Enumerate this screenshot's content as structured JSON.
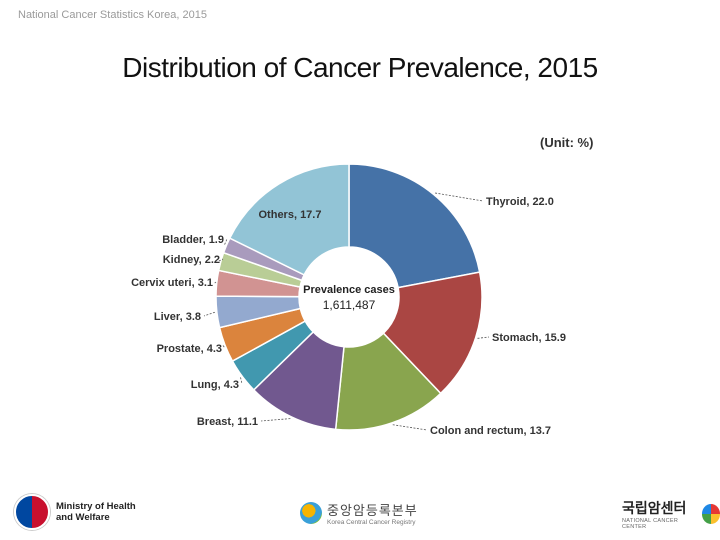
{
  "header": {
    "note": "National Cancer Statistics Korea, 2015"
  },
  "title": "Distribution of Cancer Prevalence, 2015",
  "unit_label": "(Unit: %)",
  "chart_data": {
    "type": "pie",
    "donut": true,
    "title": "Distribution of Cancer Prevalence, 2015",
    "unit": "%",
    "center_label": "Prevalence cases",
    "center_value": "1,611,487",
    "categories": [
      "Thyroid",
      "Stomach",
      "Colon and rectum",
      "Breast",
      "Lung",
      "Prostate",
      "Liver",
      "Cervix uteri",
      "Kidney",
      "Bladder",
      "Others"
    ],
    "values": [
      22.0,
      15.9,
      13.7,
      11.1,
      4.3,
      4.3,
      3.8,
      3.1,
      2.2,
      1.9,
      17.7
    ],
    "labels": [
      "Thyroid, 22.0",
      "Stomach, 15.9",
      "Colon and rectum, 13.7",
      "Breast, 11.1",
      "Lung, 4.3",
      "Prostate, 4.3",
      "Liver, 3.8",
      "Cervix uteri, 3.1",
      "Kidney, 2.2",
      "Bladder, 1.9",
      "Others, 17.7"
    ],
    "colors": [
      "#4572a7",
      "#aa4643",
      "#89a54e",
      "#71588f",
      "#4198af",
      "#db843d",
      "#93a9cf",
      "#d19392",
      "#b9cd96",
      "#a99bbd",
      "#92c4d6"
    ]
  },
  "footer": {
    "ministry": [
      "Ministry of Health",
      "and Welfare"
    ],
    "kcr_korean": "중앙암등록본부",
    "kcr_english": "Korea Central Cancer Registry",
    "ncc_korean": "국립암센터",
    "ncc_english": "NATIONAL CANCER CENTER"
  }
}
